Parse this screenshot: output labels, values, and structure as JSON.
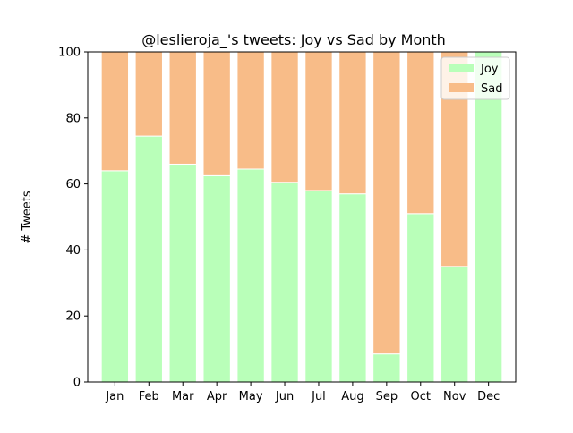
{
  "chart_data": {
    "type": "bar",
    "stacked": true,
    "title": "@leslieroja_'s tweets: Joy vs Sad by Month",
    "xlabel": "",
    "ylabel": "# Tweets",
    "ylim": [
      0,
      100
    ],
    "yticks": [
      0,
      20,
      40,
      60,
      80,
      100
    ],
    "categories": [
      "Jan",
      "Feb",
      "Mar",
      "Apr",
      "May",
      "Jun",
      "Jul",
      "Aug",
      "Sep",
      "Oct",
      "Nov",
      "Dec"
    ],
    "series": [
      {
        "name": "Joy",
        "color": "#b9ffb9",
        "values": [
          64,
          74.5,
          66,
          62.5,
          64.5,
          60.5,
          58,
          57,
          8.5,
          51,
          35,
          100
        ]
      },
      {
        "name": "Sad",
        "color": "#f8bc88",
        "values": [
          36,
          25.5,
          34,
          37.5,
          35.5,
          39.5,
          42,
          43,
          91.5,
          49,
          65,
          0
        ]
      }
    ],
    "legend_position": "top-right",
    "grid": false
  }
}
